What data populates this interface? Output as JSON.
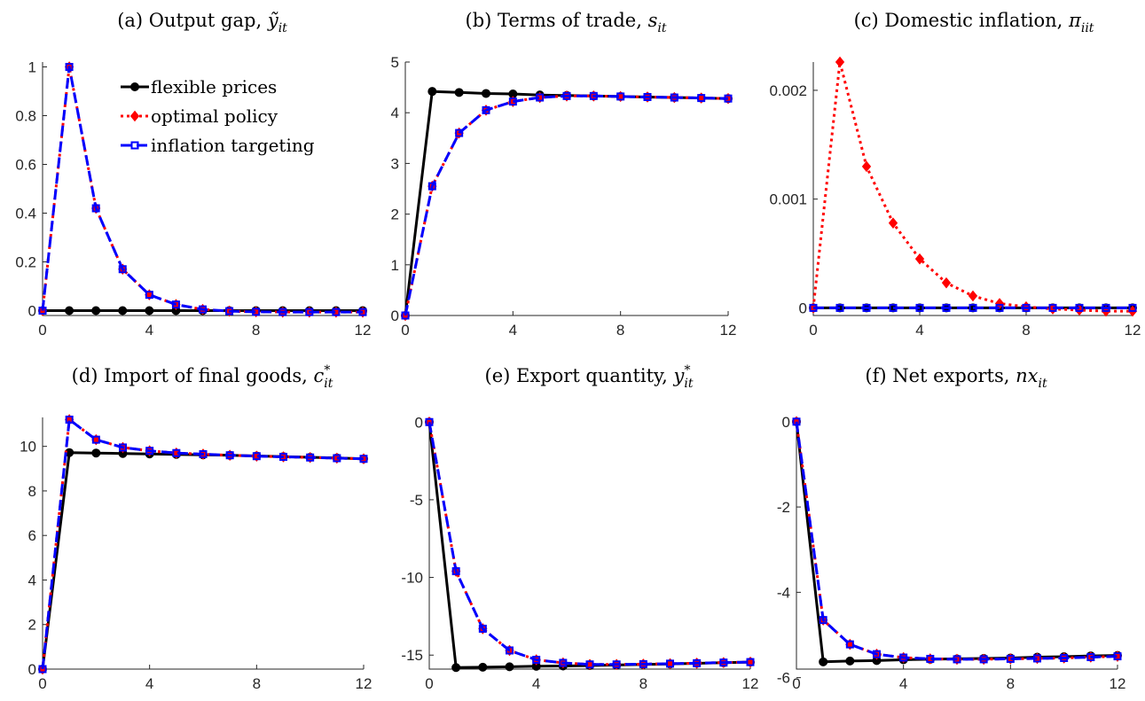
{
  "legend": {
    "placement": "top-right of panel (a)",
    "entries": [
      {
        "label": "flexible prices",
        "color": "#000000",
        "marker": "circle",
        "line": "solid"
      },
      {
        "label": "optimal policy",
        "color": "#ff0000",
        "marker": "diamond",
        "line": "dotted"
      },
      {
        "label": "inflation targeting",
        "color": "#0000ff",
        "marker": "square",
        "line": "dashed"
      }
    ]
  },
  "chart_data": [
    {
      "type": "line",
      "title": "(a) Output gap, ỹ_it",
      "title_parts": [
        "(a) Output gap, ",
        "ỹ",
        "it"
      ],
      "x": [
        0,
        1,
        2,
        3,
        4,
        5,
        6,
        7,
        8,
        9,
        10,
        11,
        12
      ],
      "xlim": [
        0,
        12
      ],
      "ylim": [
        -0.02,
        1.02
      ],
      "xticks": [
        "0",
        "4",
        "8",
        "12"
      ],
      "yticks": [
        "0",
        "0.2",
        "0.4",
        "0.6",
        "0.8",
        "1"
      ],
      "series": [
        {
          "name": "flexible prices",
          "values": [
            0,
            0,
            0,
            0,
            0,
            0,
            0,
            0,
            0,
            0,
            0,
            0,
            0
          ]
        },
        {
          "name": "optimal policy",
          "values": [
            0,
            1.0,
            0.42,
            0.17,
            0.065,
            0.025,
            0.005,
            -0.002,
            -0.005,
            -0.006,
            -0.006,
            -0.006,
            -0.006
          ]
        },
        {
          "name": "inflation targeting",
          "values": [
            0,
            1.0,
            0.42,
            0.17,
            0.065,
            0.025,
            0.005,
            -0.002,
            -0.005,
            -0.006,
            -0.006,
            -0.006,
            -0.006
          ]
        }
      ]
    },
    {
      "type": "line",
      "title": "(b) Terms of trade, s_it",
      "title_parts": [
        "(b) Terms of trade, ",
        "s",
        "it"
      ],
      "x": [
        0,
        1,
        2,
        3,
        4,
        5,
        6,
        7,
        8,
        9,
        10,
        11,
        12
      ],
      "xlim": [
        0,
        12
      ],
      "ylim": [
        0,
        5
      ],
      "xticks": [
        "0",
        "4",
        "8",
        "12"
      ],
      "yticks": [
        "0",
        "1",
        "2",
        "3",
        "4",
        "5"
      ],
      "series": [
        {
          "name": "flexible prices",
          "values": [
            0,
            4.42,
            4.4,
            4.38,
            4.37,
            4.35,
            4.34,
            4.33,
            4.32,
            4.31,
            4.3,
            4.29,
            4.28
          ]
        },
        {
          "name": "optimal policy",
          "values": [
            0,
            2.55,
            3.6,
            4.05,
            4.22,
            4.3,
            4.33,
            4.33,
            4.32,
            4.31,
            4.3,
            4.29,
            4.28
          ]
        },
        {
          "name": "inflation targeting",
          "values": [
            0,
            2.55,
            3.6,
            4.05,
            4.22,
            4.3,
            4.33,
            4.33,
            4.32,
            4.31,
            4.3,
            4.29,
            4.28
          ]
        }
      ]
    },
    {
      "type": "line",
      "title": "(c) Domestic inflation, π_iit",
      "title_parts": [
        "(c) Domestic inflation, ",
        "π",
        "iit"
      ],
      "x": [
        0,
        1,
        2,
        3,
        4,
        5,
        6,
        7,
        8,
        9,
        10,
        11,
        12
      ],
      "xlim": [
        0,
        12
      ],
      "ylim": [
        -7e-05,
        0.00226
      ],
      "xticks": [
        "0",
        "4",
        "8",
        "12"
      ],
      "yticks": [
        "0",
        "0.001",
        "0.002"
      ],
      "series": [
        {
          "name": "flexible prices",
          "values": [
            0,
            0,
            0,
            0,
            0,
            0,
            0,
            0,
            0,
            0,
            0,
            0,
            0
          ]
        },
        {
          "name": "optimal policy",
          "values": [
            0,
            0.00226,
            0.0013,
            0.00078,
            0.00045,
            0.00023,
            0.00011,
            4e-05,
            1e-05,
            -1e-05,
            -2e-05,
            -3e-05,
            -3e-05
          ]
        },
        {
          "name": "inflation targeting",
          "values": [
            0,
            0,
            0,
            0,
            0,
            0,
            0,
            0,
            0,
            0,
            0,
            0,
            0
          ]
        }
      ]
    },
    {
      "type": "line",
      "title": "(d) Import of final goods, c*_it",
      "title_parts": [
        "(d) Import of final goods, ",
        "c",
        "it",
        "*"
      ],
      "x": [
        0,
        1,
        2,
        3,
        4,
        5,
        6,
        7,
        8,
        9,
        10,
        11,
        12
      ],
      "xlim": [
        0,
        12
      ],
      "ylim": [
        0,
        11.3
      ],
      "xticks": [
        "0",
        "4",
        "8",
        "12"
      ],
      "yticks": [
        "0",
        "2",
        "4",
        "6",
        "8",
        "10"
      ],
      "series": [
        {
          "name": "flexible prices",
          "values": [
            0,
            9.72,
            9.7,
            9.68,
            9.66,
            9.64,
            9.62,
            9.6,
            9.57,
            9.54,
            9.51,
            9.48,
            9.44
          ]
        },
        {
          "name": "optimal policy",
          "values": [
            0,
            11.2,
            10.3,
            9.95,
            9.8,
            9.7,
            9.65,
            9.6,
            9.56,
            9.53,
            9.5,
            9.47,
            9.44
          ]
        },
        {
          "name": "inflation targeting",
          "values": [
            0,
            11.2,
            10.3,
            9.95,
            9.8,
            9.7,
            9.65,
            9.6,
            9.56,
            9.53,
            9.5,
            9.47,
            9.44
          ]
        }
      ]
    },
    {
      "type": "line",
      "title": "(e) Export quantity, y*_it",
      "title_parts": [
        "(e) Export quantity, ",
        "y",
        "it",
        "*"
      ],
      "x": [
        0,
        1,
        2,
        3,
        4,
        5,
        6,
        7,
        8,
        9,
        10,
        11,
        12
      ],
      "xlim": [
        0,
        12
      ],
      "ylim": [
        -15.9,
        0.3
      ],
      "xticks": [
        "0",
        "4",
        "8",
        "12"
      ],
      "yticks": [
        "0",
        "-5",
        "-10",
        "-15"
      ],
      "series": [
        {
          "name": "flexible prices",
          "values": [
            0,
            -15.8,
            -15.78,
            -15.75,
            -15.72,
            -15.7,
            -15.67,
            -15.64,
            -15.6,
            -15.57,
            -15.53,
            -15.49,
            -15.45
          ]
        },
        {
          "name": "optimal policy",
          "values": [
            0,
            -9.6,
            -13.3,
            -14.7,
            -15.3,
            -15.5,
            -15.6,
            -15.6,
            -15.58,
            -15.55,
            -15.52,
            -15.48,
            -15.45
          ]
        },
        {
          "name": "inflation targeting",
          "values": [
            0,
            -9.6,
            -13.3,
            -14.7,
            -15.3,
            -15.5,
            -15.6,
            -15.6,
            -15.58,
            -15.55,
            -15.52,
            -15.48,
            -15.45
          ]
        }
      ]
    },
    {
      "type": "line",
      "title": "(f) Net exports, nx_it",
      "title_parts": [
        "(f) Net exports, ",
        "nx",
        "it"
      ],
      "x": [
        0,
        1,
        2,
        3,
        4,
        5,
        6,
        7,
        8,
        9,
        10,
        11,
        12
      ],
      "xlim": [
        0,
        12
      ],
      "ylim": [
        -5.8,
        0.1
      ],
      "xticks": [
        "0",
        "4",
        "8",
        "12"
      ],
      "yticks": [
        "0",
        "-2",
        "-4",
        "-6"
      ],
      "series": [
        {
          "name": "flexible prices",
          "values": [
            0,
            -5.63,
            -5.61,
            -5.6,
            -5.58,
            -5.57,
            -5.56,
            -5.55,
            -5.54,
            -5.52,
            -5.51,
            -5.49,
            -5.48
          ]
        },
        {
          "name": "optimal policy",
          "values": [
            0,
            -4.65,
            -5.22,
            -5.45,
            -5.53,
            -5.56,
            -5.57,
            -5.57,
            -5.56,
            -5.55,
            -5.54,
            -5.52,
            -5.5
          ]
        },
        {
          "name": "inflation targeting",
          "values": [
            0,
            -4.65,
            -5.22,
            -5.45,
            -5.53,
            -5.56,
            -5.57,
            -5.57,
            -5.56,
            -5.55,
            -5.54,
            -5.52,
            -5.5
          ]
        }
      ]
    }
  ]
}
